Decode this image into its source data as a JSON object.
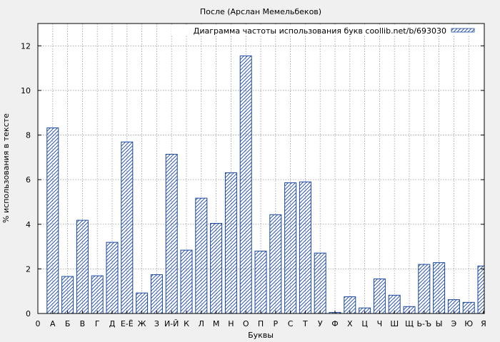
{
  "chart_data": {
    "type": "bar",
    "title": "После (Арслан Мемельбеков)",
    "xlabel": "Буквы",
    "ylabel": "% использования в тексте",
    "legend": "Диаграмма частоты использования букв coollib.net/b/693030",
    "legend_position": "top-right",
    "grid": true,
    "x_first_tick": "0",
    "categories": [
      "А",
      "Б",
      "В",
      "Г",
      "Д",
      "Е-Ё",
      "Ж",
      "З",
      "И-Й",
      "К",
      "Л",
      "М",
      "Н",
      "О",
      "П",
      "Р",
      "С",
      "Т",
      "У",
      "Ф",
      "Х",
      "Ц",
      "Ч",
      "Ш",
      "Щ",
      "Ь-Ъ",
      "Ы",
      "Э",
      "Ю",
      "Я"
    ],
    "values": [
      8.32,
      1.66,
      4.18,
      1.69,
      3.19,
      7.69,
      0.92,
      1.74,
      7.14,
      2.84,
      5.17,
      4.04,
      6.31,
      11.55,
      2.8,
      4.43,
      5.86,
      5.9,
      2.71,
      0.05,
      0.75,
      0.25,
      1.55,
      0.82,
      0.31,
      2.2,
      2.28,
      0.62,
      0.5,
      2.13
    ],
    "yticks": [
      0,
      2,
      4,
      6,
      8,
      10,
      12
    ],
    "ylim": [
      0,
      13
    ]
  }
}
